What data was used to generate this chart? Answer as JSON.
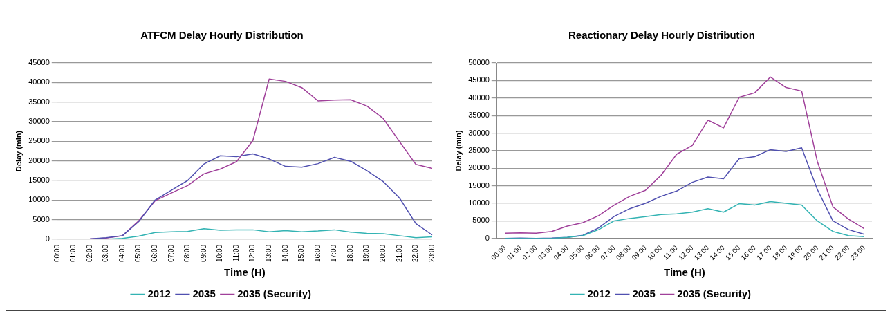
{
  "chart_data": [
    {
      "type": "line",
      "title": "ATFCM Delay Hourly Distribution",
      "xlabel": "Time (H)",
      "ylabel": "Delay (min)",
      "categories": [
        "00:00",
        "01:00",
        "02:00",
        "03:00",
        "04:00",
        "05:00",
        "06:00",
        "07:00",
        "08:00",
        "09:00",
        "10:00",
        "11:00",
        "12:00",
        "13:00",
        "14:00",
        "15:00",
        "16:00",
        "17:00",
        "18:00",
        "19:00",
        "20:00",
        "21:00",
        "22:00",
        "23:00"
      ],
      "series": [
        {
          "name": "2012",
          "color": "#33b3b3",
          "values": [
            0,
            0,
            0,
            0,
            200,
            800,
            1700,
            1900,
            2000,
            2700,
            2300,
            2400,
            2400,
            1900,
            2200,
            1900,
            2100,
            2400,
            1800,
            1500,
            1400,
            900,
            400,
            600
          ]
        },
        {
          "name": "2035",
          "color": "#5050b0",
          "values": [
            0,
            0,
            100,
            400,
            900,
            4500,
            10000,
            12500,
            15000,
            19200,
            21300,
            21100,
            21800,
            20500,
            18600,
            18400,
            19300,
            20900,
            19900,
            17500,
            14700,
            10500,
            4000,
            1100
          ]
        },
        {
          "name": "2035 (Security)",
          "color": "#a0409a",
          "values": [
            0,
            0,
            100,
            300,
            900,
            4700,
            9800,
            11800,
            13700,
            16700,
            17900,
            19800,
            25200,
            40900,
            40300,
            38700,
            35300,
            35500,
            35600,
            34000,
            30800,
            24900,
            19100,
            18100
          ]
        }
      ],
      "ylim": [
        0,
        45000
      ],
      "yticks": [
        0,
        5000,
        10000,
        15000,
        20000,
        25000,
        30000,
        35000,
        40000,
        45000
      ],
      "grid": "y",
      "legend": "bottom",
      "marker": "none"
    },
    {
      "type": "line",
      "title": "Reactionary Delay Hourly Distribution",
      "xlabel": "Time (H)",
      "ylabel": "Delay (min)",
      "categories": [
        "00:00",
        "01:00",
        "02:00",
        "03:00",
        "04:00",
        "05:00",
        "06:00",
        "07:00",
        "08:00",
        "09:00",
        "10:00",
        "11:00",
        "12:00",
        "13:00",
        "14:00",
        "15:00",
        "16:00",
        "17:00",
        "18:00",
        "19:00",
        "20:00",
        "21:00",
        "22:00",
        "23:00"
      ],
      "series": [
        {
          "name": "2012",
          "color": "#33b3b3",
          "values": [
            0,
            0,
            0,
            0,
            300,
            800,
            2500,
            5000,
            5700,
            6200,
            6800,
            7000,
            7500,
            8500,
            7500,
            9900,
            9500,
            10500,
            10000,
            9500,
            5000,
            2000,
            800,
            500
          ]
        },
        {
          "name": "2035",
          "color": "#5050b0",
          "values": [
            0,
            100,
            0,
            100,
            300,
            900,
            3000,
            6300,
            8500,
            10000,
            12000,
            13500,
            16000,
            17500,
            17000,
            22700,
            23300,
            25300,
            24800,
            25800,
            14000,
            5000,
            2500,
            1200
          ]
        },
        {
          "name": "2035 (Security)",
          "color": "#a0409a",
          "values": [
            1500,
            1600,
            1500,
            2000,
            3500,
            4500,
            6500,
            9500,
            12000,
            13700,
            18000,
            24000,
            26500,
            33700,
            31500,
            40200,
            41500,
            46000,
            43000,
            42000,
            22000,
            9000,
            5500,
            2800
          ]
        }
      ],
      "ylim": [
        0,
        50000
      ],
      "yticks": [
        0,
        5000,
        10000,
        15000,
        20000,
        25000,
        30000,
        35000,
        40000,
        45000,
        50000
      ],
      "grid": "y",
      "legend": "bottom",
      "marker": "none"
    }
  ]
}
